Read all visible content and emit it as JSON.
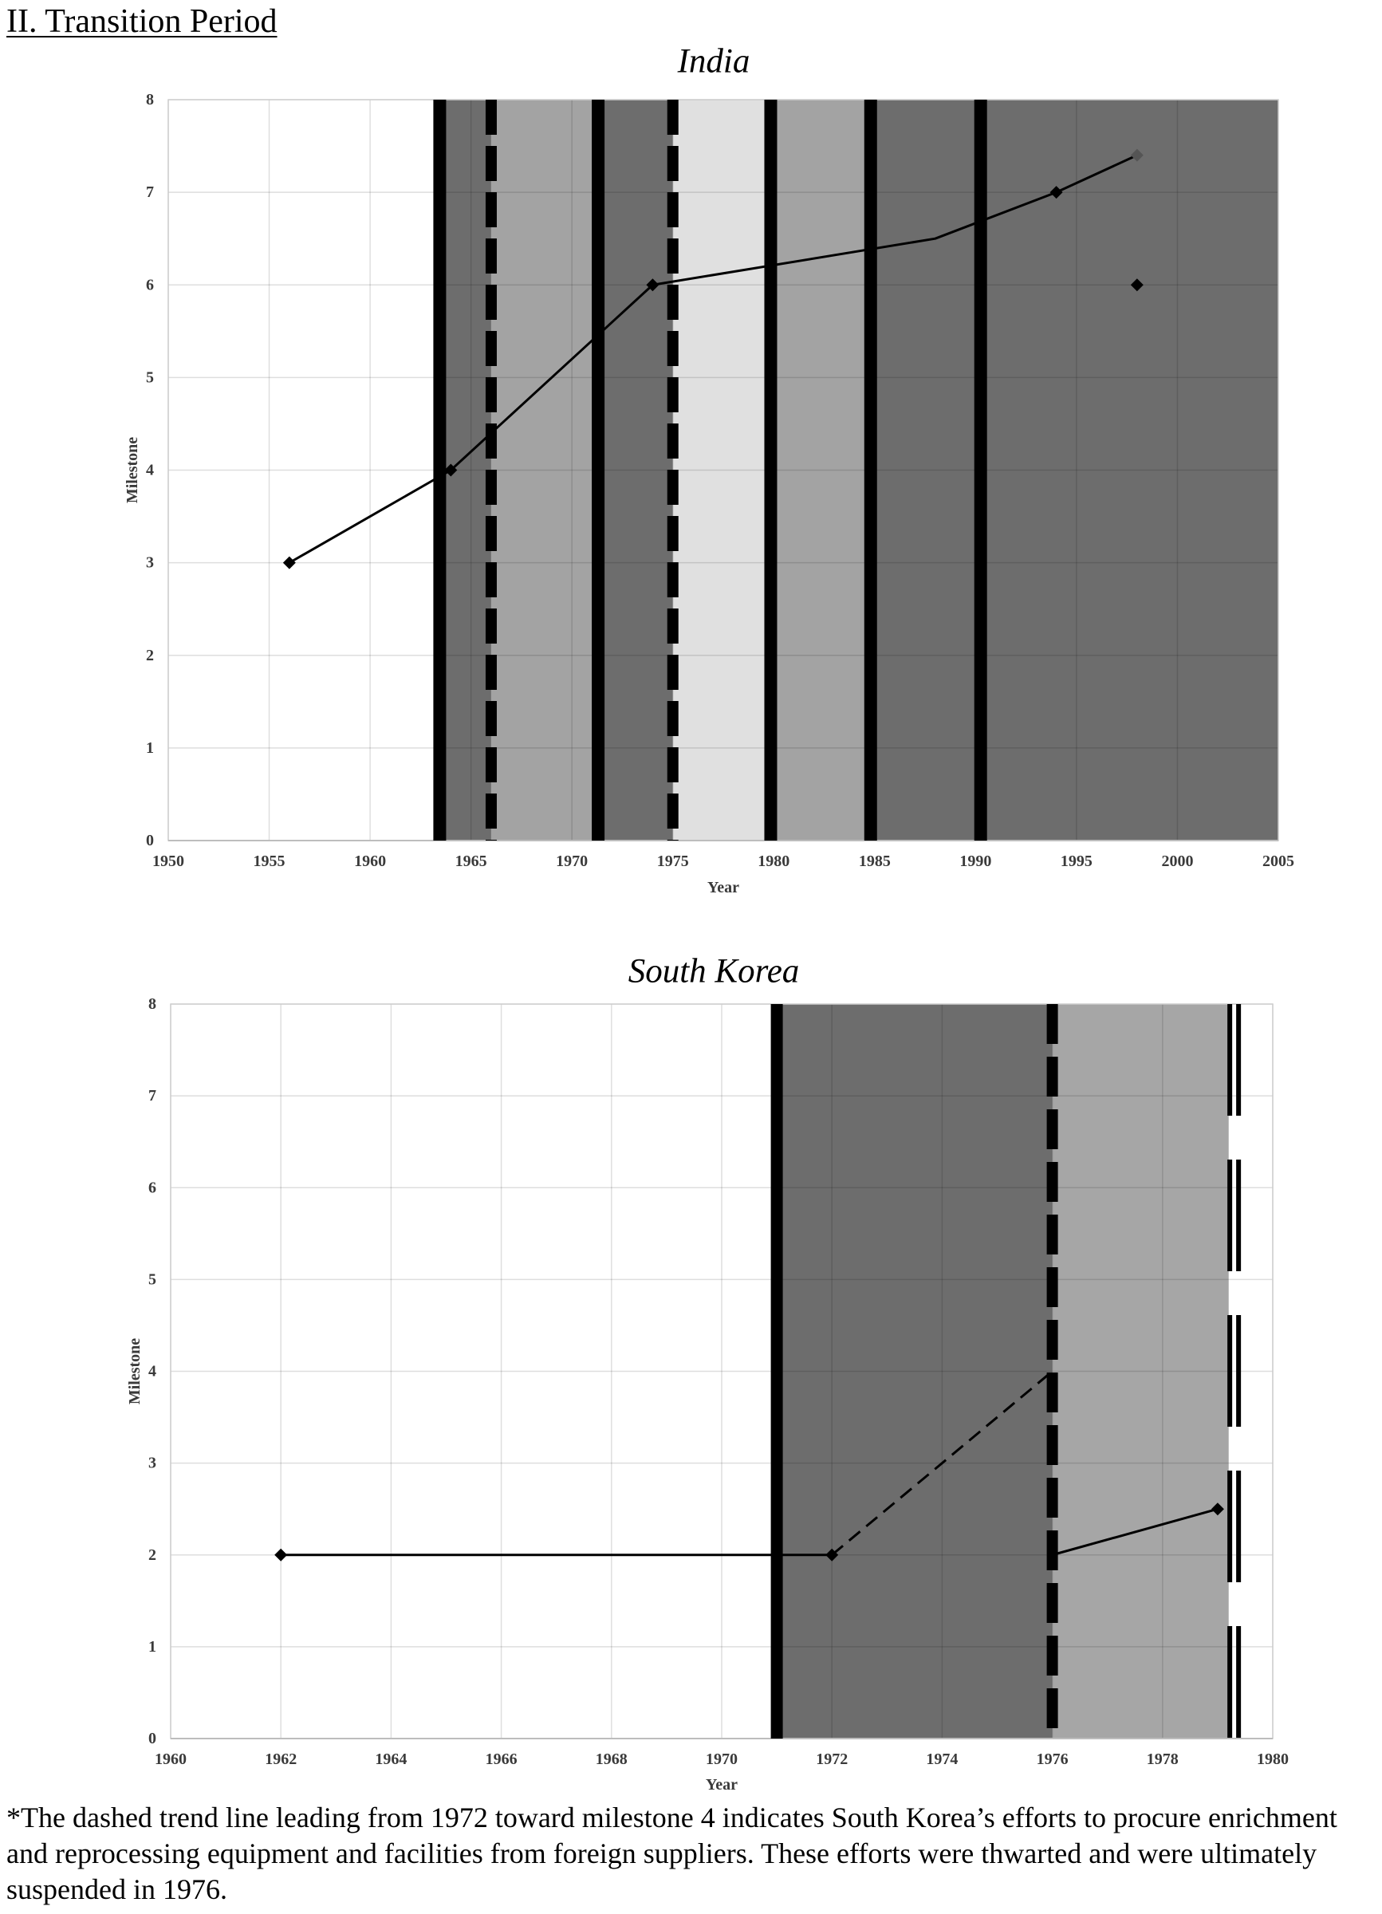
{
  "heading": "II. Transition Period",
  "chart_data": [
    {
      "type": "line",
      "title": "India",
      "xlabel": "Year",
      "ylabel": "Milestone",
      "xlim": [
        1950,
        2005
      ],
      "ylim": [
        0,
        8
      ],
      "xticks": [
        1950,
        1955,
        1960,
        1965,
        1970,
        1975,
        1980,
        1985,
        1990,
        1995,
        2000,
        2005
      ],
      "yticks": [
        0,
        1,
        2,
        3,
        4,
        5,
        6,
        7,
        8
      ],
      "grid": true,
      "bands": [
        {
          "from": 1963.45,
          "to": 1966,
          "color": "#6d6d6d"
        },
        {
          "from": 1966,
          "to": 1971.3,
          "color": "#a3a3a3"
        },
        {
          "from": 1971.3,
          "to": 1975,
          "color": "#6d6d6d"
        },
        {
          "from": 1975,
          "to": 1979.85,
          "color": "#e0e0e0"
        },
        {
          "from": 1979.85,
          "to": 1984.8,
          "color": "#a3a3a3"
        },
        {
          "from": 1984.8,
          "to": 2005,
          "color": "#6d6d6d"
        }
      ],
      "vlines": [
        {
          "x": 1963.45,
          "style": "solid"
        },
        {
          "x": 1966,
          "style": "dashed"
        },
        {
          "x": 1971.3,
          "style": "solid"
        },
        {
          "x": 1975,
          "style": "dashed"
        },
        {
          "x": 1979.85,
          "style": "solid"
        },
        {
          "x": 1984.8,
          "style": "solid"
        },
        {
          "x": 1990.25,
          "style": "solid"
        }
      ],
      "series": [
        {
          "line": "solid",
          "color": "#000000",
          "points": [
            {
              "x": 1956,
              "y": 3,
              "marker": "#000000"
            },
            {
              "x": 1964,
              "y": 4,
              "marker": "#000000"
            },
            {
              "x": 1974,
              "y": 6,
              "marker": "#000000"
            },
            {
              "x": 1988,
              "y": 6.5,
              "marker": false
            },
            {
              "x": 1994,
              "y": 7,
              "marker": "#000000"
            },
            {
              "x": 1998,
              "y": 7.4,
              "marker": "#555555"
            }
          ]
        },
        {
          "line": "none",
          "color": "#000000",
          "points": [
            {
              "x": 1998,
              "y": 6,
              "marker": "#000000"
            }
          ]
        }
      ]
    },
    {
      "type": "line",
      "title": "South Korea",
      "xlabel": "Year",
      "ylabel": "Milestone",
      "xlim": [
        1960,
        1980
      ],
      "ylim": [
        0,
        8
      ],
      "xticks": [
        1960,
        1962,
        1964,
        1966,
        1968,
        1970,
        1972,
        1974,
        1976,
        1978,
        1980
      ],
      "yticks": [
        0,
        1,
        2,
        3,
        4,
        5,
        6,
        7,
        8
      ],
      "grid": true,
      "bands": [
        {
          "from": 1971,
          "to": 1976,
          "color": "#6d6d6d"
        },
        {
          "from": 1976,
          "to": 1979.2,
          "color": "#a6a6a6"
        }
      ],
      "vlines": [
        {
          "x": 1971,
          "style": "solid"
        },
        {
          "x": 1976,
          "style": "dashed"
        },
        {
          "x": 1979.3,
          "style": "double-dashed"
        }
      ],
      "series": [
        {
          "line": "solid",
          "color": "#000000",
          "points": [
            {
              "x": 1962,
              "y": 2,
              "marker": "#000000"
            },
            {
              "x": 1972,
              "y": 2,
              "marker": "#000000"
            }
          ]
        },
        {
          "line": "dashed",
          "color": "#000000",
          "points": [
            {
              "x": 1972,
              "y": 2,
              "marker": false
            },
            {
              "x": 1976,
              "y": 4,
              "marker": false
            }
          ]
        },
        {
          "line": "solid",
          "color": "#000000",
          "points": [
            {
              "x": 1976,
              "y": 2,
              "marker": false
            },
            {
              "x": 1979,
              "y": 2.5,
              "marker": "#000000"
            }
          ]
        }
      ]
    }
  ],
  "footnote": "*The dashed trend line leading from 1972 toward milestone 4 indicates South Korea’s efforts to procure enrichment and reprocessing equipment and facilities from foreign suppliers. These efforts were thwarted and were ultimately suspended in 1976."
}
